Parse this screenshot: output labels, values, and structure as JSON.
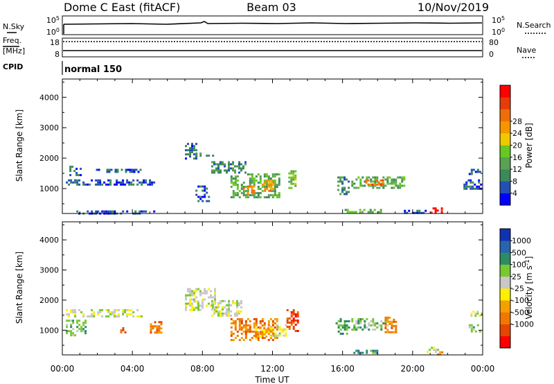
{
  "header": {
    "station": "Dome C East (fitACF)",
    "beam": "Beam 03",
    "date": "10/Nov/2019"
  },
  "side_labels": {
    "nsky": "N.Sky",
    "freq_line1": "Freq.",
    "freq_line2": "[MHz]",
    "cpid": "CPID",
    "nsearch": "N.Search",
    "nave": "Nave"
  },
  "status_panels": {
    "nsky_ticks": [
      "10^5",
      "10^0"
    ],
    "nsearch_ticks": [
      "10^5",
      "10^0"
    ],
    "freq_ticks": [
      "18",
      "8"
    ],
    "nave_ticks": [
      "80",
      "0"
    ],
    "cpid_text": "normal 150"
  },
  "colors": {
    "power_scale": [
      "#0000ff",
      "#2450b4",
      "#3c8a5a",
      "#5aa055",
      "#66c820",
      "#f0c800",
      "#f59600",
      "#f06e0a",
      "#e63c0a",
      "#ff0000"
    ],
    "velocity_scale": [
      "#1232b4",
      "#2a64b0",
      "#2d8c64",
      "#78c832",
      "#c8c8c8",
      "#fff000",
      "#f5a000",
      "#f07800",
      "#e64600",
      "#ff0000"
    ]
  },
  "chart_data": [
    {
      "type": "heatmap",
      "title": "",
      "xlabel": "Time UT",
      "ylabel": "Slant Range [km]",
      "x_tick_labels": [
        "00:00",
        "04:00",
        "08:00",
        "12:00",
        "16:00",
        "20:00",
        "00:00"
      ],
      "y_tick_labels": [
        "1000",
        "2000",
        "3000",
        "4000"
      ],
      "xlim": [
        0,
        24
      ],
      "ylim": [
        180,
        4600
      ],
      "colorbar": {
        "label": "Power [dB]",
        "ticks": [
          "4",
          "8",
          "12",
          "16",
          "20",
          "24",
          "28"
        ]
      },
      "regions": [
        {
          "t": [
            0.2,
            5.3
          ],
          "r": [
            1100,
            1300
          ],
          "level": 1
        },
        {
          "t": [
            0.4,
            1.0
          ],
          "r": [
            1450,
            1750
          ],
          "level": 1
        },
        {
          "t": [
            1.8,
            4.5
          ],
          "r": [
            1550,
            1650
          ],
          "level": 1
        },
        {
          "t": [
            0.8,
            5.2
          ],
          "r": [
            210,
            280
          ],
          "level": 1
        },
        {
          "t": [
            7.0,
            7.6
          ],
          "r": [
            2000,
            2500
          ],
          "level": 1
        },
        {
          "t": [
            7.6,
            8.6
          ],
          "r": [
            2050,
            2250
          ],
          "level": 2
        },
        {
          "t": [
            8.5,
            10.5
          ],
          "r": [
            1500,
            1900
          ],
          "level": 2
        },
        {
          "t": [
            9.6,
            12.4
          ],
          "r": [
            700,
            1500
          ],
          "level": 3
        },
        {
          "t": [
            10.3,
            11.0
          ],
          "r": [
            800,
            1100
          ],
          "level": 7
        },
        {
          "t": [
            11.4,
            12.1
          ],
          "r": [
            900,
            1300
          ],
          "level": 6
        },
        {
          "t": [
            12.9,
            13.3
          ],
          "r": [
            1000,
            1600
          ],
          "level": 4
        },
        {
          "t": [
            7.6,
            8.4
          ],
          "r": [
            600,
            1100
          ],
          "level": 1
        },
        {
          "t": [
            15.7,
            16.4
          ],
          "r": [
            800,
            1400
          ],
          "level": 2
        },
        {
          "t": [
            16.5,
            19.5
          ],
          "r": [
            1050,
            1400
          ],
          "level": 3
        },
        {
          "t": [
            17.3,
            18.3
          ],
          "r": [
            1100,
            1300
          ],
          "level": 7
        },
        {
          "t": [
            16.0,
            18.3
          ],
          "r": [
            220,
            330
          ],
          "level": 3
        },
        {
          "t": [
            19.5,
            20.8
          ],
          "r": [
            200,
            300
          ],
          "level": 1
        },
        {
          "t": [
            20.9,
            21.7
          ],
          "r": [
            200,
            380
          ],
          "level": 9
        },
        {
          "t": [
            22.9,
            23.9
          ],
          "r": [
            1000,
            1300
          ],
          "level": 1
        },
        {
          "t": [
            23.2,
            23.9
          ],
          "r": [
            1450,
            1650
          ],
          "level": 1
        }
      ]
    },
    {
      "type": "heatmap",
      "title": "",
      "xlabel": "Time UT",
      "ylabel": "Slant Range [km]",
      "x_tick_labels": [
        "00:00",
        "04:00",
        "08:00",
        "12:00",
        "16:00",
        "20:00",
        "00:00"
      ],
      "y_tick_labels": [
        "1000",
        "2000",
        "3000",
        "4000"
      ],
      "xlim": [
        0,
        24
      ],
      "ylim": [
        180,
        4600
      ],
      "colorbar": {
        "label": "Velocity [m s^-1]",
        "ticks": [
          "1000",
          "500",
          "100",
          "25",
          "-25",
          "-100",
          "-500",
          "-1000"
        ]
      },
      "regions": [
        {
          "t": [
            0.2,
            4.5
          ],
          "r": [
            1450,
            1700
          ],
          "level": 4
        },
        {
          "t": [
            0.2,
            1.3
          ],
          "r": [
            850,
            1350
          ],
          "level": 3
        },
        {
          "t": [
            5.0,
            5.6
          ],
          "r": [
            900,
            1300
          ],
          "level": 7
        },
        {
          "t": [
            3.3,
            3.6
          ],
          "r": [
            900,
            1100
          ],
          "level": 7
        },
        {
          "t": [
            7.0,
            8.7
          ],
          "r": [
            1700,
            2400
          ],
          "level": 4
        },
        {
          "t": [
            8.5,
            10.2
          ],
          "r": [
            1500,
            2000
          ],
          "level": 4
        },
        {
          "t": [
            9.6,
            12.3
          ],
          "r": [
            700,
            1400
          ],
          "level": 7
        },
        {
          "t": [
            11.0,
            12.0
          ],
          "r": [
            750,
            1100
          ],
          "level": 6
        },
        {
          "t": [
            12.0,
            12.8
          ],
          "r": [
            800,
            1200
          ],
          "level": 4
        },
        {
          "t": [
            12.8,
            13.4
          ],
          "r": [
            1000,
            1700
          ],
          "level": 8
        },
        {
          "t": [
            15.6,
            16.4
          ],
          "r": [
            850,
            1400
          ],
          "level": 2
        },
        {
          "t": [
            16.5,
            18.6
          ],
          "r": [
            1000,
            1400
          ],
          "level": 3
        },
        {
          "t": [
            18.4,
            19.1
          ],
          "r": [
            950,
            1450
          ],
          "level": 7
        },
        {
          "t": [
            16.5,
            18.0
          ],
          "r": [
            250,
            350
          ],
          "level": 2
        },
        {
          "t": [
            20.8,
            21.4
          ],
          "r": [
            250,
            450
          ],
          "level": 4
        },
        {
          "t": [
            21.4,
            21.8
          ],
          "r": [
            200,
            300
          ],
          "level": 7
        },
        {
          "t": [
            23.3,
            23.9
          ],
          "r": [
            1500,
            1650
          ],
          "level": 4
        },
        {
          "t": [
            23.2,
            23.9
          ],
          "r": [
            950,
            1200
          ],
          "level": 3
        }
      ]
    }
  ]
}
